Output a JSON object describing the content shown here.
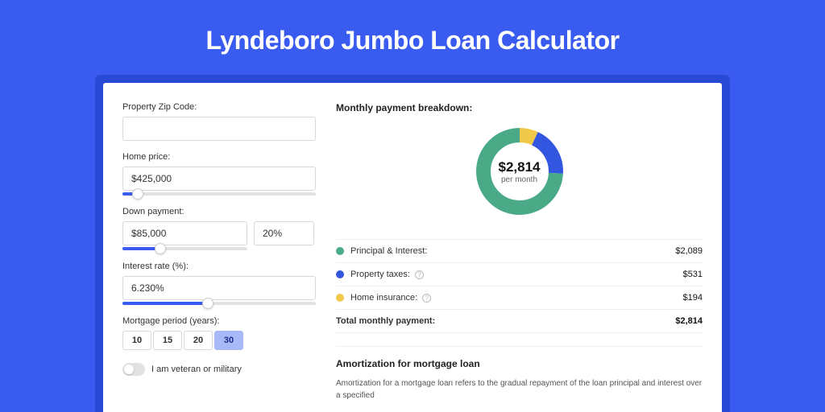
{
  "hero": {
    "title": "Lyndeboro Jumbo Loan Calculator"
  },
  "colors": {
    "primary": "#3a5bf0",
    "panel_bg": "#2849d6",
    "pi": "#4aa986",
    "tax": "#3256e0",
    "ins": "#f0c94a"
  },
  "form": {
    "zip": {
      "label": "Property Zip Code:",
      "value": ""
    },
    "home_price": {
      "label": "Home price:",
      "value": "$425,000",
      "slider_pct": 8
    },
    "down_payment": {
      "label": "Down payment:",
      "value": "$85,000",
      "pct": "20%",
      "slider_pct": 30
    },
    "interest": {
      "label": "Interest rate (%):",
      "value": "6.230%",
      "slider_pct": 44
    },
    "period": {
      "label": "Mortgage period (years):",
      "options": [
        "10",
        "15",
        "20",
        "30"
      ],
      "selected": "30"
    },
    "veteran": {
      "label": "I am veteran or military",
      "on": false
    }
  },
  "breakdown": {
    "title": "Monthly payment breakdown:",
    "center_amount": "$2,814",
    "center_sub": "per month",
    "donut": {
      "circumference": 283,
      "radius": 45,
      "stroke": 18,
      "segments": [
        {
          "key": "ins",
          "frac": 0.069,
          "color": "#f0c94a"
        },
        {
          "key": "tax",
          "frac": 0.189,
          "color": "#3256e0"
        },
        {
          "key": "pi",
          "frac": 0.742,
          "color": "#4aa986"
        }
      ]
    },
    "rows": [
      {
        "label": "Principal & Interest:",
        "value": "$2,089",
        "color": "#4aa986",
        "help": false
      },
      {
        "label": "Property taxes:",
        "value": "$531",
        "color": "#3256e0",
        "help": true
      },
      {
        "label": "Home insurance:",
        "value": "$194",
        "color": "#f0c94a",
        "help": true
      }
    ],
    "total": {
      "label": "Total monthly payment:",
      "value": "$2,814"
    }
  },
  "amortization": {
    "title": "Amortization for mortgage loan",
    "body": "Amortization for a mortgage loan refers to the gradual repayment of the loan principal and interest over a specified"
  }
}
